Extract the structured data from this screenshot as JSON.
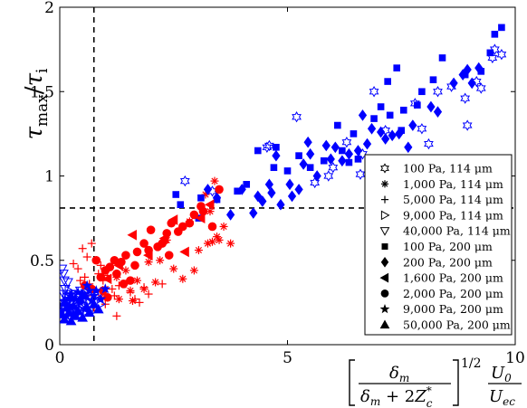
{
  "chart_data": {
    "type": "scatter",
    "xlabel": {
      "numerator": "δ",
      "numerator_sub": "m",
      "denominator_a": "δ",
      "denominator_a_sub": "m",
      "denominator_b": " + 2",
      "denominator_c": "Z",
      "denominator_c_sup": "*",
      "denominator_c_sub": "c",
      "exponent": "1/2",
      "ratio_num": "U",
      "ratio_num_sub": "0",
      "ratio_den": "U",
      "ratio_den_sub": "ec"
    },
    "ylabel": {
      "main": "τ",
      "sub_a": "max",
      "slash": "/",
      "main_b": "τ",
      "sub_b": "i"
    },
    "xlim": [
      0,
      10
    ],
    "ylim": [
      0,
      2
    ],
    "xticks": [
      "0",
      "5",
      "10"
    ],
    "yticks": [
      "0",
      "0.5",
      "1",
      "1.5",
      "2"
    ],
    "grid": false,
    "legend_position": "right",
    "ref_lines": {
      "vertical_x": 0.75,
      "horizontal_y": 0.81
    },
    "colors": {
      "blue": "#0000ff",
      "red": "#ff0000"
    },
    "series": [
      {
        "name": "100 Pa, 114 μm",
        "marker": "hexagram",
        "color": "#0000ff",
        "filled": false,
        "points": [
          [
            2.75,
            0.97
          ],
          [
            3.35,
            0.91
          ],
          [
            4.55,
            1.17
          ],
          [
            4.6,
            1.18
          ],
          [
            5.2,
            1.35
          ],
          [
            5.6,
            0.96
          ],
          [
            6.0,
            1.05
          ],
          [
            6.3,
            1.2
          ],
          [
            6.65,
            1.13
          ],
          [
            6.9,
            1.5
          ],
          [
            7.15,
            1.27
          ],
          [
            7.8,
            1.43
          ],
          [
            7.95,
            1.28
          ],
          [
            8.3,
            1.5
          ],
          [
            8.6,
            1.53
          ],
          [
            8.9,
            1.46
          ],
          [
            8.95,
            1.3
          ],
          [
            9.15,
            1.56
          ],
          [
            9.25,
            1.52
          ],
          [
            9.5,
            1.7
          ],
          [
            9.55,
            1.75
          ],
          [
            9.7,
            1.72
          ],
          [
            8.1,
            1.19
          ],
          [
            6.6,
            1.01
          ],
          [
            5.9,
            1.0
          ]
        ]
      },
      {
        "name": "1,000 Pa, 114 μm",
        "marker": "asterisk",
        "color": "#ff0000",
        "filled": true,
        "points": [
          [
            0.9,
            0.28
          ],
          [
            1.0,
            0.33
          ],
          [
            1.3,
            0.27
          ],
          [
            1.45,
            0.44
          ],
          [
            1.55,
            0.32
          ],
          [
            1.6,
            0.26
          ],
          [
            1.7,
            0.38
          ],
          [
            1.85,
            0.33
          ],
          [
            1.95,
            0.49
          ],
          [
            2.1,
            0.37
          ],
          [
            2.2,
            0.5
          ],
          [
            2.35,
            0.62
          ],
          [
            2.5,
            0.45
          ],
          [
            2.7,
            0.39
          ],
          [
            2.85,
            0.73
          ],
          [
            3.05,
            0.56
          ],
          [
            3.2,
            0.89
          ],
          [
            3.25,
            0.6
          ],
          [
            3.35,
            0.61
          ],
          [
            3.3,
            0.79
          ],
          [
            3.45,
            0.64
          ],
          [
            3.5,
            0.62
          ],
          [
            3.6,
            0.7
          ],
          [
            3.75,
            0.6
          ],
          [
            3.4,
            0.97
          ],
          [
            2.95,
            0.44
          ],
          [
            1.25,
            0.4
          ]
        ]
      },
      {
        "name": "5,000 Pa, 114 μm",
        "marker": "plus",
        "color": "#ff0000",
        "filled": true,
        "points": [
          [
            0.4,
            0.45
          ],
          [
            0.5,
            0.57
          ],
          [
            0.55,
            0.4
          ],
          [
            0.6,
            0.52
          ],
          [
            0.65,
            0.36
          ],
          [
            0.7,
            0.6
          ],
          [
            0.75,
            0.32
          ],
          [
            0.8,
            0.5
          ],
          [
            0.85,
            0.42
          ],
          [
            0.9,
            0.47
          ],
          [
            0.95,
            0.38
          ],
          [
            1.05,
            0.41
          ],
          [
            1.15,
            0.33
          ],
          [
            1.2,
            0.29
          ],
          [
            1.25,
            0.17
          ],
          [
            1.3,
            0.35
          ],
          [
            1.45,
            0.36
          ],
          [
            1.55,
            0.31
          ],
          [
            1.65,
            0.27
          ],
          [
            1.75,
            0.25
          ],
          [
            1.85,
            0.34
          ],
          [
            1.95,
            0.3
          ],
          [
            2.25,
            0.36
          ],
          [
            0.3,
            0.48
          ],
          [
            0.45,
            0.38
          ],
          [
            0.6,
            0.29
          ],
          [
            0.75,
            0.22
          ],
          [
            1.0,
            0.24
          ]
        ]
      },
      {
        "name": "9,000 Pa, 114 μm",
        "marker": "triangle-right",
        "color": "#0000ff",
        "filled": false,
        "points": [
          [
            0.1,
            0.22
          ],
          [
            0.2,
            0.32
          ],
          [
            0.3,
            0.25
          ],
          [
            0.35,
            0.18
          ],
          [
            0.4,
            0.27
          ],
          [
            0.5,
            0.23
          ],
          [
            0.55,
            0.3
          ],
          [
            0.6,
            0.2
          ],
          [
            0.7,
            0.33
          ],
          [
            0.8,
            0.21
          ],
          [
            0.9,
            0.24
          ],
          [
            0.15,
            0.28
          ],
          [
            0.45,
            0.21
          ],
          [
            0.65,
            0.26
          ],
          [
            0.85,
            0.3
          ]
        ]
      },
      {
        "name": "40,000 Pa, 114 μm",
        "marker": "triangle-down",
        "color": "#0000ff",
        "filled": false,
        "points": [
          [
            0.05,
            0.45
          ],
          [
            0.08,
            0.42
          ],
          [
            0.1,
            0.38
          ],
          [
            0.12,
            0.33
          ],
          [
            0.15,
            0.3
          ],
          [
            0.18,
            0.37
          ],
          [
            0.2,
            0.26
          ],
          [
            0.22,
            0.22
          ],
          [
            0.25,
            0.28
          ],
          [
            0.3,
            0.3
          ],
          [
            0.35,
            0.25
          ],
          [
            0.4,
            0.2
          ],
          [
            0.08,
            0.3
          ],
          [
            0.12,
            0.24
          ],
          [
            0.45,
            0.32
          ],
          [
            0.5,
            0.23
          ],
          [
            0.55,
            0.27
          ]
        ]
      },
      {
        "name": "100 Pa, 200 μm",
        "marker": "square",
        "color": "#0000ff",
        "filled": true,
        "points": [
          [
            2.55,
            0.89
          ],
          [
            2.65,
            0.83
          ],
          [
            3.05,
            0.75
          ],
          [
            3.1,
            0.87
          ],
          [
            3.45,
            0.86
          ],
          [
            3.9,
            0.91
          ],
          [
            4.1,
            0.95
          ],
          [
            4.35,
            1.15
          ],
          [
            4.7,
            1.05
          ],
          [
            4.75,
            1.17
          ],
          [
            5.0,
            1.03
          ],
          [
            5.25,
            1.12
          ],
          [
            5.5,
            1.05
          ],
          [
            5.8,
            1.09
          ],
          [
            6.1,
            1.3
          ],
          [
            6.2,
            1.15
          ],
          [
            6.35,
            1.08
          ],
          [
            6.55,
            1.1
          ],
          [
            6.9,
            1.34
          ],
          [
            7.05,
            1.41
          ],
          [
            7.2,
            1.56
          ],
          [
            7.4,
            1.64
          ],
          [
            7.5,
            1.27
          ],
          [
            7.55,
            1.39
          ],
          [
            7.85,
            1.42
          ],
          [
            7.95,
            1.5
          ],
          [
            8.2,
            1.57
          ],
          [
            8.4,
            1.7
          ],
          [
            8.9,
            1.6
          ],
          [
            9.25,
            1.62
          ],
          [
            9.55,
            1.84
          ],
          [
            9.7,
            1.88
          ],
          [
            9.45,
            1.73
          ],
          [
            7.25,
            1.36
          ],
          [
            6.45,
            1.25
          ]
        ]
      },
      {
        "name": "200 Pa, 200 μm",
        "marker": "diamond",
        "color": "#0000ff",
        "filled": true,
        "points": [
          [
            3.25,
            0.92
          ],
          [
            3.45,
            0.87
          ],
          [
            3.75,
            0.77
          ],
          [
            4.0,
            0.92
          ],
          [
            4.25,
            0.78
          ],
          [
            4.35,
            0.88
          ],
          [
            4.6,
            0.95
          ],
          [
            4.65,
            0.9
          ],
          [
            4.75,
            1.12
          ],
          [
            4.85,
            0.83
          ],
          [
            5.1,
            0.88
          ],
          [
            5.25,
            0.92
          ],
          [
            5.35,
            1.07
          ],
          [
            5.45,
            1.2
          ],
          [
            5.5,
            1.13
          ],
          [
            5.65,
            1.0
          ],
          [
            5.85,
            1.18
          ],
          [
            5.95,
            1.1
          ],
          [
            6.05,
            1.17
          ],
          [
            6.35,
            1.13
          ],
          [
            6.55,
            1.15
          ],
          [
            6.65,
            1.36
          ],
          [
            6.75,
            1.19
          ],
          [
            6.85,
            1.28
          ],
          [
            7.15,
            1.22
          ],
          [
            7.3,
            1.24
          ],
          [
            7.45,
            1.25
          ],
          [
            7.65,
            1.17
          ],
          [
            7.75,
            1.3
          ],
          [
            8.15,
            1.41
          ],
          [
            8.3,
            1.38
          ],
          [
            8.65,
            1.55
          ],
          [
            8.95,
            1.63
          ],
          [
            9.05,
            1.55
          ],
          [
            9.2,
            1.64
          ],
          [
            8.85,
            1.6
          ],
          [
            7.05,
            1.26
          ],
          [
            6.2,
            1.09
          ],
          [
            5.05,
            0.95
          ],
          [
            4.45,
            0.85
          ]
        ]
      },
      {
        "name": "1,600 Pa, 200 μm",
        "marker": "triangle-left",
        "color": "#ff0000",
        "filled": true,
        "points": [
          [
            1.05,
            0.39
          ],
          [
            1.3,
            0.47
          ],
          [
            1.6,
            0.65
          ],
          [
            1.95,
            0.53
          ],
          [
            2.3,
            0.63
          ],
          [
            2.75,
            0.55
          ],
          [
            3.1,
            0.75
          ],
          [
            3.3,
            0.83
          ],
          [
            2.5,
            0.74
          ]
        ]
      },
      {
        "name": "2,000 Pa, 200 μm",
        "marker": "circle",
        "color": "#ff0000",
        "filled": true,
        "points": [
          [
            0.55,
            0.35
          ],
          [
            0.7,
            0.33
          ],
          [
            0.8,
            0.5
          ],
          [
            0.9,
            0.4
          ],
          [
            1.0,
            0.44
          ],
          [
            1.05,
            0.28
          ],
          [
            1.1,
            0.46
          ],
          [
            1.2,
            0.5
          ],
          [
            1.25,
            0.42
          ],
          [
            1.35,
            0.49
          ],
          [
            1.45,
            0.53
          ],
          [
            1.55,
            0.38
          ],
          [
            1.65,
            0.47
          ],
          [
            1.7,
            0.55
          ],
          [
            1.85,
            0.6
          ],
          [
            1.95,
            0.56
          ],
          [
            2.0,
            0.68
          ],
          [
            2.15,
            0.58
          ],
          [
            2.25,
            0.6
          ],
          [
            2.35,
            0.66
          ],
          [
            2.45,
            0.72
          ],
          [
            2.6,
            0.67
          ],
          [
            2.7,
            0.7
          ],
          [
            2.85,
            0.72
          ],
          [
            2.95,
            0.77
          ],
          [
            3.1,
            0.82
          ],
          [
            3.15,
            0.79
          ],
          [
            3.35,
            0.7
          ],
          [
            3.5,
            0.92
          ],
          [
            0.95,
            0.32
          ],
          [
            1.4,
            0.36
          ],
          [
            2.4,
            0.53
          ]
        ]
      },
      {
        "name": "9,000 Pa, 200 μm",
        "marker": "pentagram",
        "color": "#0000ff",
        "filled": true,
        "points": [
          [
            0.05,
            0.2
          ],
          [
            0.15,
            0.17
          ],
          [
            0.2,
            0.23
          ],
          [
            0.25,
            0.3
          ],
          [
            0.3,
            0.18
          ],
          [
            0.35,
            0.27
          ],
          [
            0.45,
            0.25
          ],
          [
            0.5,
            0.3
          ],
          [
            0.55,
            0.21
          ],
          [
            0.6,
            0.35
          ],
          [
            0.65,
            0.32
          ],
          [
            0.7,
            0.26
          ],
          [
            0.8,
            0.32
          ],
          [
            0.9,
            0.27
          ],
          [
            1.0,
            0.33
          ],
          [
            0.1,
            0.26
          ],
          [
            0.4,
            0.31
          ],
          [
            0.75,
            0.29
          ]
        ]
      },
      {
        "name": "50,000 Pa, 200 μm",
        "marker": "triangle-up",
        "color": "#0000ff",
        "filled": true,
        "points": [
          [
            0.05,
            0.18
          ],
          [
            0.1,
            0.15
          ],
          [
            0.15,
            0.22
          ],
          [
            0.2,
            0.19
          ],
          [
            0.25,
            0.14
          ],
          [
            0.3,
            0.23
          ],
          [
            0.35,
            0.17
          ],
          [
            0.4,
            0.2
          ],
          [
            0.5,
            0.16
          ],
          [
            0.6,
            0.22
          ],
          [
            0.65,
            0.19
          ],
          [
            0.75,
            0.24
          ],
          [
            0.12,
            0.25
          ],
          [
            0.22,
            0.28
          ],
          [
            0.45,
            0.27
          ],
          [
            0.55,
            0.29
          ],
          [
            0.85,
            0.21
          ]
        ]
      }
    ]
  }
}
